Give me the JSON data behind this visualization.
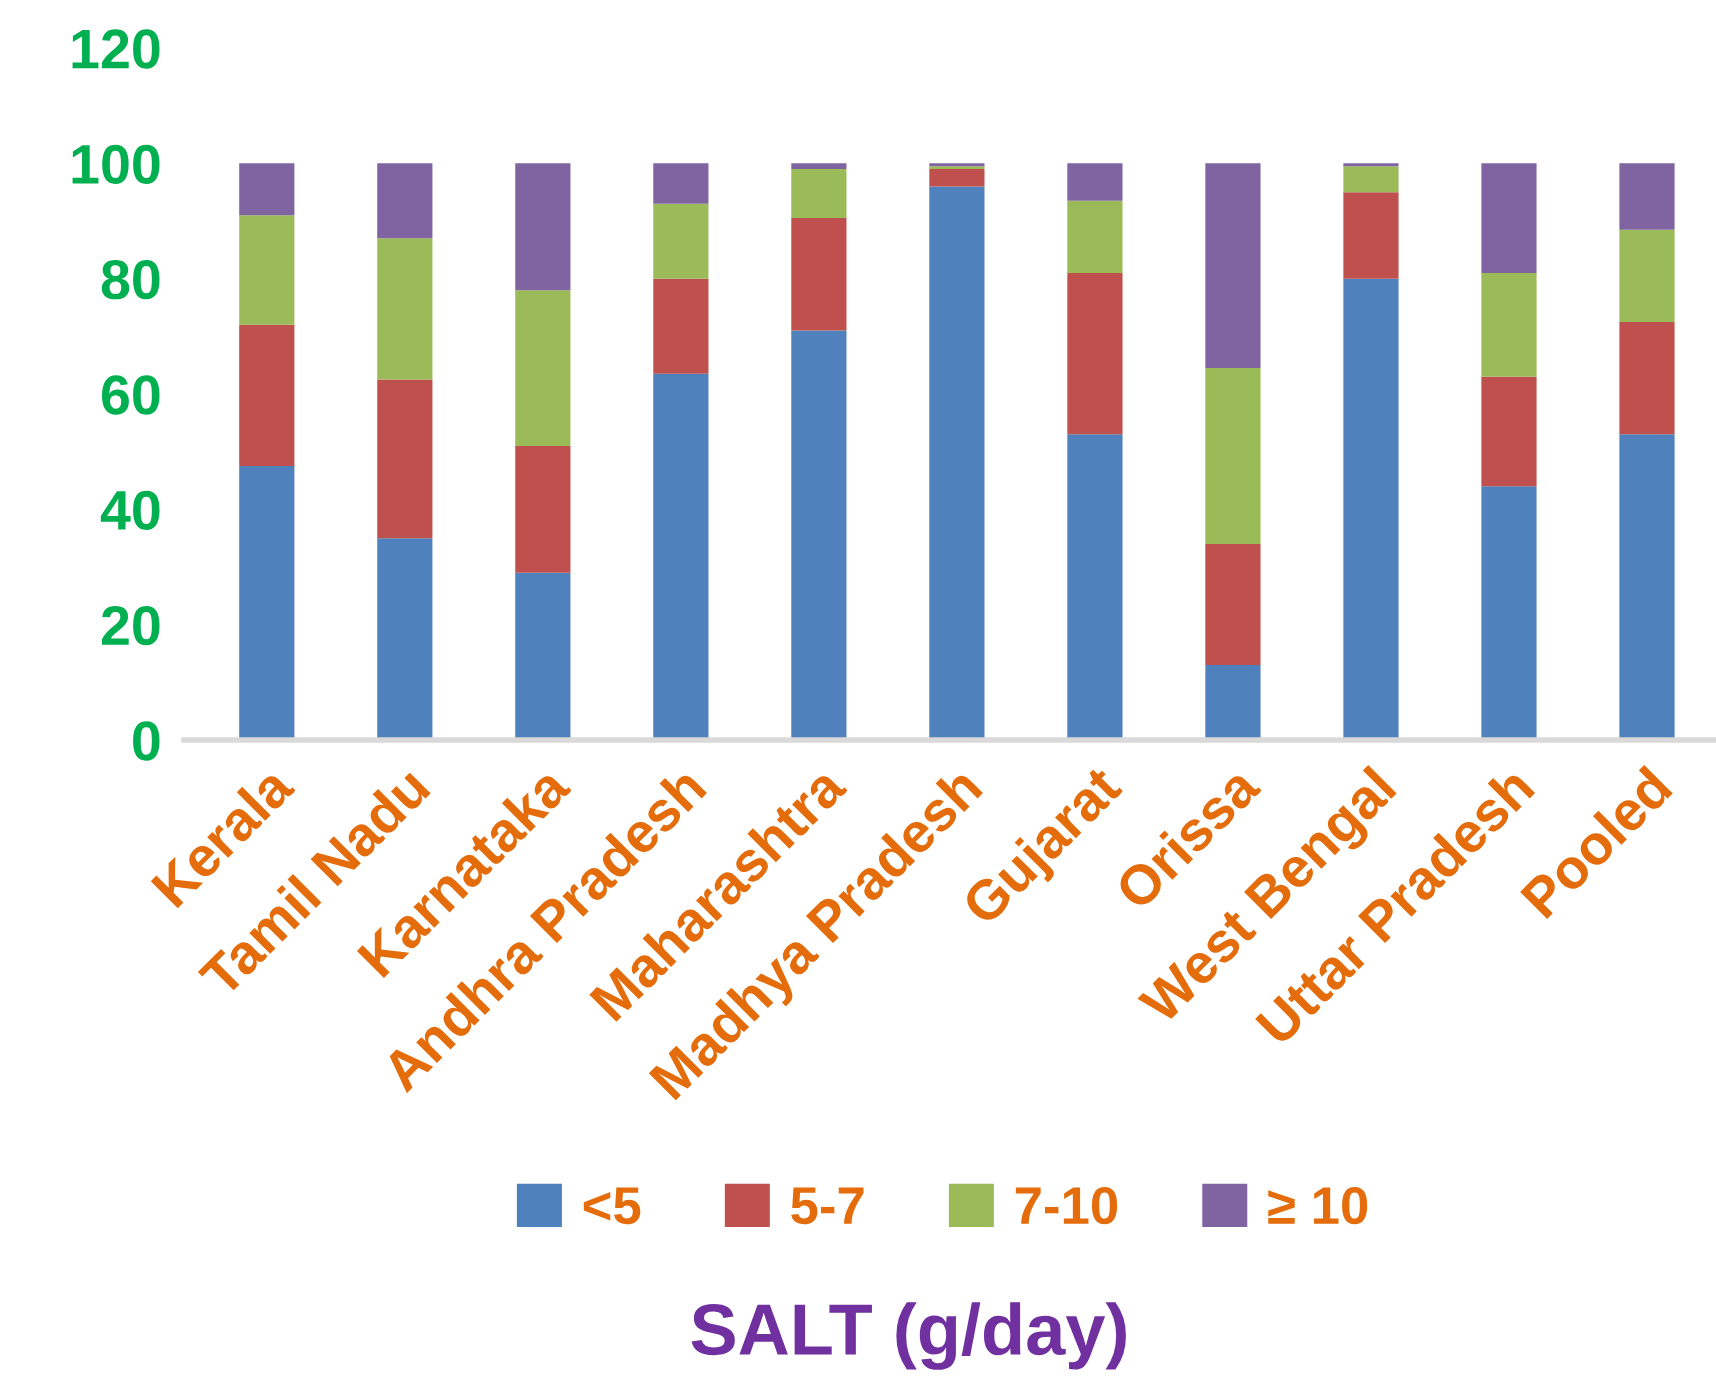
{
  "chart_data": {
    "type": "bar",
    "stacked": true,
    "xlabel": "SALT (g/day)",
    "categories": [
      "Kerala",
      "Tamil Nadu",
      "Karnataka",
      "Andhra Pradesh",
      "Maharashtra",
      "Madhya Pradesh",
      "Gujarat",
      "Orissa",
      "West Bengal",
      "Uttar Pradesh",
      "Pooled"
    ],
    "series": [
      {
        "name": "<5",
        "color": "#4f81bd",
        "values": [
          47.5,
          35,
          29,
          63.5,
          71,
          96,
          53,
          13,
          80,
          44,
          53
        ]
      },
      {
        "name": "5-7",
        "color": "#c0504d",
        "values": [
          24.5,
          27.5,
          22,
          16.5,
          19.5,
          3,
          28,
          21,
          15,
          19,
          19.5
        ]
      },
      {
        "name": "7-10",
        "color": "#9bbb59",
        "values": [
          19,
          24.5,
          27,
          13,
          8.5,
          0.5,
          12.5,
          30.5,
          4.5,
          18,
          16
        ]
      },
      {
        "name": "≥ 10",
        "color": "#8064a2",
        "values": [
          9,
          13,
          22,
          7,
          1,
          0.5,
          6.5,
          35.5,
          0.5,
          19,
          11.5
        ]
      }
    ],
    "ylim": [
      0,
      120
    ],
    "yticks": [
      0,
      20,
      40,
      60,
      80,
      100,
      120
    ],
    "grid": false,
    "legend": "bottom"
  }
}
